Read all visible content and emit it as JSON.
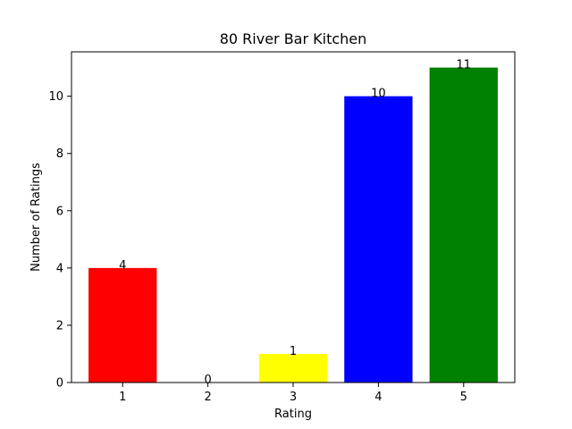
{
  "chart_data": {
    "type": "bar",
    "title": "80 River Bar Kitchen",
    "xlabel": "Rating",
    "ylabel": "Number of Ratings",
    "categories": [
      "1",
      "2",
      "3",
      "4",
      "5"
    ],
    "values": [
      4,
      0,
      1,
      10,
      11
    ],
    "data_labels": [
      "4",
      "0",
      "1",
      "10",
      "11"
    ],
    "colors": [
      "#ff0000",
      "#008000",
      "#ffff00",
      "#0000ff",
      "#008000"
    ],
    "yticks": [
      0,
      2,
      4,
      6,
      8,
      10
    ],
    "ytick_labels": [
      "0",
      "2",
      "4",
      "6",
      "8",
      "10"
    ],
    "ylim": [
      0,
      11.55
    ],
    "grid": false,
    "legend": false
  }
}
